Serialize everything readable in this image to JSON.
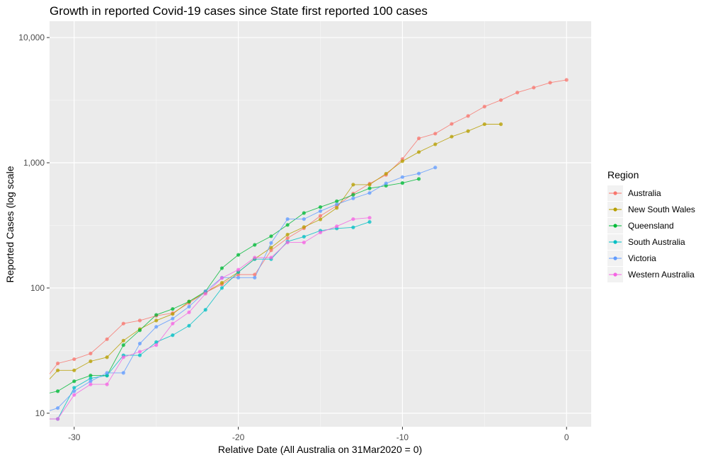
{
  "chart_data": {
    "type": "line",
    "title": "Growth in reported Covid-19 cases since State first reported 100 cases",
    "xlabel": "Relative Date (All Australia on 31Mar2020 = 0)",
    "ylabel": "Reported Cases (log scale",
    "y_scale": "log",
    "xlim": [
      -31.5,
      1.5
    ],
    "ylim": [
      7.8,
      13500
    ],
    "x_ticks": [
      -30,
      -20,
      -10,
      0
    ],
    "x_tick_labels": [
      "-30",
      "-20",
      "-10",
      "0"
    ],
    "y_ticks": [
      10,
      100,
      1000,
      10000
    ],
    "y_tick_labels": [
      "10",
      "100",
      "1,000",
      "10,000"
    ],
    "grid": true,
    "legend_position": "right",
    "legend_title": "Region",
    "series": [
      {
        "name": "Australia",
        "color": "#F8766D",
        "x": [
          -32,
          -31,
          -30,
          -29,
          -28,
          -27,
          -26,
          -25,
          -24,
          -23,
          -22,
          -21,
          -20,
          -19,
          -18,
          -17,
          -16,
          -15,
          -14,
          -13,
          -12,
          -11,
          -10,
          -9,
          -8,
          -7,
          -6,
          -5,
          -4,
          -3,
          -2,
          -1,
          0
        ],
        "y": [
          17,
          25,
          27,
          30,
          39,
          52,
          55,
          60,
          63,
          76,
          92,
          107,
          128,
          128,
          200,
          250,
          300,
          377,
          454,
          568,
          681,
          800,
          1072,
          1567,
          1709,
          2044,
          2364,
          2810,
          3166,
          3640,
          3984,
          4361,
          4593
        ]
      },
      {
        "name": "New South Wales",
        "color": "#B79F00",
        "x": [
          -32,
          -31,
          -30,
          -29,
          -28,
          -27,
          -26,
          -25,
          -24,
          -23,
          -22,
          -21,
          -20,
          -19,
          -18,
          -17,
          -16,
          -15,
          -14,
          -13,
          -12,
          -11,
          -10,
          -9,
          -8,
          -7,
          -6,
          -5,
          -4
        ],
        "y": [
          16,
          22,
          22,
          26,
          28,
          38,
          47,
          55,
          62,
          78,
          92,
          110,
          134,
          171,
          210,
          267,
          307,
          353,
          436,
          669,
          669,
          818,
          1029,
          1219,
          1405,
          1617,
          1791,
          2032,
          2032
        ]
      },
      {
        "name": "Queensland",
        "color": "#00BA38",
        "x": [
          -32,
          -31,
          -30,
          -29,
          -28,
          -27,
          -26,
          -25,
          -24,
          -23,
          -22,
          -21,
          -20,
          -19,
          -18,
          -17,
          -16,
          -15,
          -14,
          -13,
          -12,
          -11,
          -10,
          -9
        ],
        "y": [
          14,
          15,
          18,
          20,
          20,
          35,
          46,
          61,
          68,
          78,
          94,
          144,
          184,
          221,
          259,
          319,
          397,
          443,
          493,
          555,
          625,
          656,
          689,
          743
        ]
      },
      {
        "name": "South Australia",
        "color": "#00BFC4",
        "x": [
          -32,
          -31,
          -30,
          -29,
          -28,
          -27,
          -26,
          -25,
          -24,
          -23,
          -22,
          -21,
          -20,
          -19,
          -18,
          -17,
          -16,
          -15,
          -14,
          -13,
          -12
        ],
        "y": [
          9,
          9,
          16,
          19,
          20,
          29,
          29,
          37,
          42,
          50,
          67,
          100,
          134,
          170,
          170,
          235,
          257,
          287,
          299,
          305,
          337
        ]
      },
      {
        "name": "Victoria",
        "color": "#619CFF",
        "x": [
          -32,
          -31,
          -30,
          -29,
          -28,
          -27,
          -26,
          -25,
          -24,
          -23,
          -22,
          -21,
          -20,
          -19,
          -18,
          -17,
          -16,
          -15,
          -14,
          -13,
          -12,
          -11,
          -10,
          -9,
          -8
        ],
        "y": [
          10,
          11,
          15,
          18,
          21,
          21,
          36,
          49,
          57,
          71,
          94,
          121,
          121,
          121,
          229,
          355,
          355,
          411,
          466,
          520,
          574,
          685,
          769,
          821,
          917
        ]
      },
      {
        "name": "Western Australia",
        "color": "#F564E3",
        "x": [
          -32,
          -31,
          -30,
          -29,
          -28,
          -27,
          -26,
          -25,
          -24,
          -23,
          -22,
          -21,
          -20,
          -19,
          -18,
          -17,
          -16,
          -15,
          -14,
          -13,
          -12
        ],
        "y": [
          9,
          9,
          14,
          17,
          17,
          28,
          31,
          35,
          52,
          64,
          90,
          120,
          140,
          175,
          175,
          231,
          231,
          278,
          311,
          355,
          364
        ]
      }
    ]
  }
}
